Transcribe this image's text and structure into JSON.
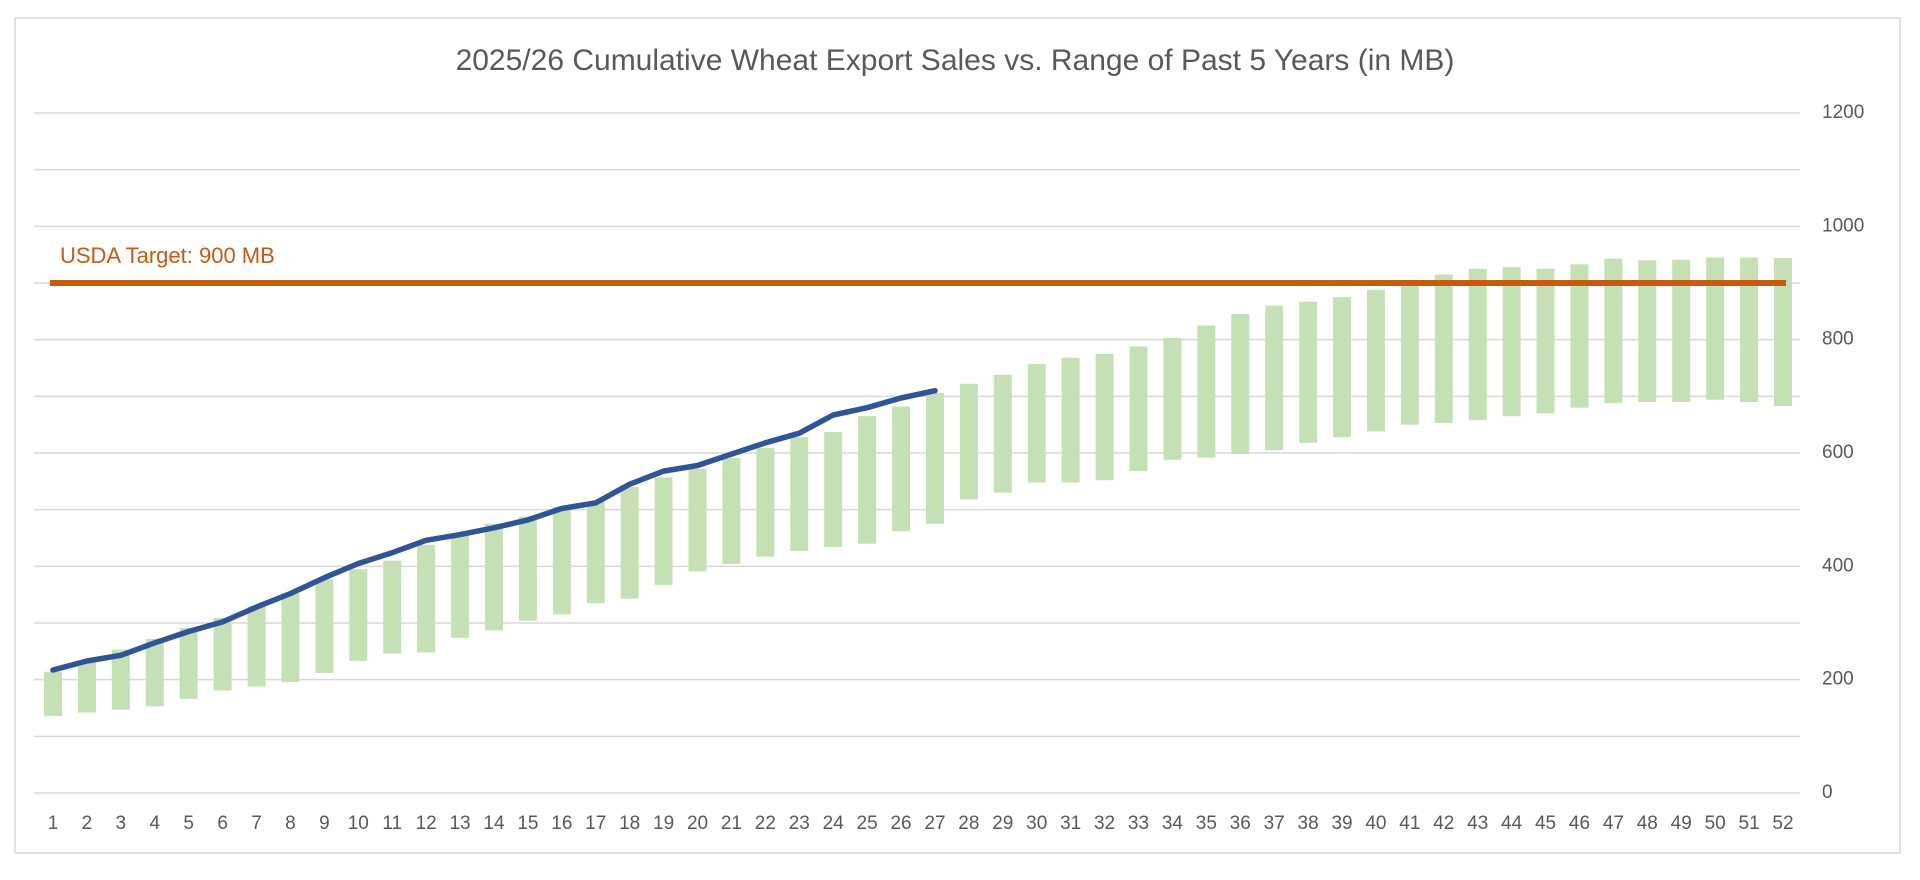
{
  "chart_data": {
    "type": "range_bar_line",
    "title": "2025/26 Cumulative Wheat Export Sales vs. Range of Past 5 Years (in MB)",
    "categories": [
      "1",
      "2",
      "3",
      "4",
      "5",
      "6",
      "7",
      "8",
      "9",
      "10",
      "11",
      "12",
      "13",
      "14",
      "15",
      "16",
      "17",
      "18",
      "19",
      "20",
      "21",
      "22",
      "23",
      "24",
      "25",
      "26",
      "27",
      "28",
      "29",
      "30",
      "31",
      "32",
      "33",
      "34",
      "35",
      "36",
      "37",
      "38",
      "39",
      "40",
      "41",
      "42",
      "43",
      "44",
      "45",
      "46",
      "47",
      "48",
      "49",
      "50",
      "51",
      "52"
    ],
    "range": {
      "color": "#c5e0b4",
      "low": [
        136,
        142,
        147,
        153,
        166,
        181,
        188,
        196,
        212,
        233,
        246,
        248,
        274,
        287,
        304,
        315,
        335,
        343,
        367,
        391,
        404,
        417,
        427,
        434,
        440,
        462,
        475,
        518,
        530,
        548,
        548,
        552,
        568,
        588,
        592,
        598,
        605,
        618,
        628,
        638,
        650,
        653,
        658,
        665,
        670,
        680,
        688,
        690,
        690,
        694,
        690,
        683
      ],
      "high": [
        214,
        231,
        253,
        272,
        291,
        309,
        330,
        352,
        378,
        395,
        410,
        438,
        455,
        475,
        488,
        505,
        514,
        540,
        557,
        572,
        591,
        609,
        628,
        637,
        665,
        682,
        706,
        722,
        738,
        757,
        768,
        775,
        788,
        803,
        825,
        845,
        860,
        867,
        875,
        888,
        897,
        915,
        925,
        928,
        925,
        933,
        943,
        940,
        941,
        945,
        945,
        944
      ]
    },
    "line": {
      "color": "#2f5597",
      "values": [
        217,
        233,
        243,
        265,
        285,
        302,
        328,
        352,
        380,
        405,
        424,
        446,
        456,
        468,
        482,
        502,
        512,
        545,
        568,
        578,
        598,
        618,
        635,
        667,
        680,
        697,
        710,
        null,
        null,
        null,
        null,
        null,
        null,
        null,
        null,
        null,
        null,
        null,
        null,
        null,
        null,
        null,
        null,
        null,
        null,
        null,
        null,
        null,
        null,
        null,
        null,
        null
      ]
    },
    "target": {
      "value": 900,
      "label": "USDA Target: 900 MB",
      "color": "#c55a11"
    },
    "ylim": [
      0,
      1200
    ],
    "yticks": [
      0,
      200,
      400,
      600,
      800,
      1000,
      1200
    ],
    "minor_yticks": [
      100,
      300,
      500,
      700,
      900,
      1100
    ],
    "y_axis_side": "right",
    "grid": true
  }
}
